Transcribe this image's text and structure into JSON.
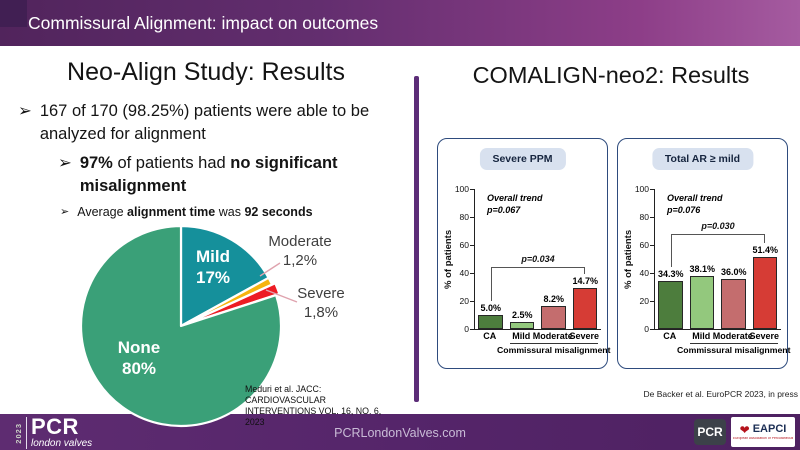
{
  "header": {
    "title": "Commissural Alignment: impact on outcomes"
  },
  "left": {
    "title": "Neo-Align Study: Results",
    "bullet1": [
      {
        "t": "167 of 170 (98.25%) patients were able to be analyzed for alignment",
        "b": false
      }
    ],
    "bullet2": [
      {
        "t": "97%",
        "b": true
      },
      {
        "t": " of patients had ",
        "b": false
      },
      {
        "t": "no significant misalignment",
        "b": true
      }
    ],
    "bullet3": [
      {
        "t": "Average ",
        "b": false
      },
      {
        "t": "alignment time",
        "b": true
      },
      {
        "t": " was ",
        "b": false
      },
      {
        "t": "92 seconds",
        "b": true
      }
    ],
    "citation": "Meduri et al. JACC: CARDIOVASCULAR INTERVENTIONS VOL. 16, NO. 6, 2023"
  },
  "right": {
    "title": "COMALIGN-neo2: Results",
    "citation": "De Backer et al. EuroPCR 2023, in press"
  },
  "footer": {
    "year": "2023",
    "brand": "PCR",
    "brand_sub": "london valves",
    "url": "PCRLondonValves.com",
    "pcr_box": "PCR",
    "eapci": {
      "label": "EAPCI",
      "subtext": "European Association of Percutaneous Cardiovascular Interventions"
    }
  },
  "chart_data": [
    {
      "type": "pie",
      "direction": "clockwise",
      "start_angle_deg": 0,
      "slices": [
        {
          "label": "Mild",
          "value": 17,
          "value_text": "17%",
          "color": "#15909b",
          "label_inside": true
        },
        {
          "label": "Moderate",
          "value": 1.2,
          "value_text": "1,2%",
          "color": "#f6b40e",
          "label_inside": false
        },
        {
          "label": "Severe",
          "value": 1.8,
          "value_text": "1,8%",
          "color": "#ed1c24",
          "label_inside": false,
          "exploded": true
        },
        {
          "label": "None",
          "value": 80,
          "value_text": "80%",
          "color": "#3aa078",
          "label_inside": true
        }
      ]
    },
    {
      "type": "bar",
      "title": "Severe PPM",
      "categories": [
        "CA",
        "Mild",
        "Moderate",
        "Severe"
      ],
      "values": [
        5.0,
        2.5,
        8.2,
        14.7
      ],
      "value_labels": [
        "5.0%",
        "2.5%",
        "8.2%",
        "14.7%"
      ],
      "colors": [
        "#4d7d3d",
        "#93c87d",
        "#c46d6e",
        "#d63c35"
      ],
      "ylabel": "% of patients",
      "ylim": [
        0,
        100
      ],
      "yticks": [
        0,
        20,
        40,
        60,
        80,
        100
      ],
      "annotation": "Overall trend\np=0.067",
      "bracket": {
        "label": "p=0.034",
        "from": 0,
        "to": 3,
        "y": 44
      },
      "group_label": "Commissural misalignment",
      "group_from": 1,
      "group_to": 3,
      "bar_display_scale": 2,
      "grid": false
    },
    {
      "type": "bar",
      "title": "Total AR ≥ mild",
      "categories": [
        "CA",
        "Mild",
        "Moderate",
        "Severe"
      ],
      "values": [
        34.3,
        38.1,
        36.0,
        51.4
      ],
      "value_labels": [
        "34.3%",
        "38.1%",
        "36.0%",
        "51.4%"
      ],
      "colors": [
        "#4d7d3d",
        "#93c87d",
        "#c46d6e",
        "#d63c35"
      ],
      "ylabel": "% of patients",
      "ylim": [
        0,
        100
      ],
      "yticks": [
        0,
        20,
        40,
        60,
        80,
        100
      ],
      "annotation": "Overall trend\np=0.076",
      "bracket": {
        "label": "p=0.030",
        "from": 0,
        "to": 3,
        "y": 68
      },
      "group_label": "Commissural misalignment",
      "group_from": 1,
      "group_to": 3,
      "bar_display_scale": 1,
      "grid": false
    }
  ]
}
